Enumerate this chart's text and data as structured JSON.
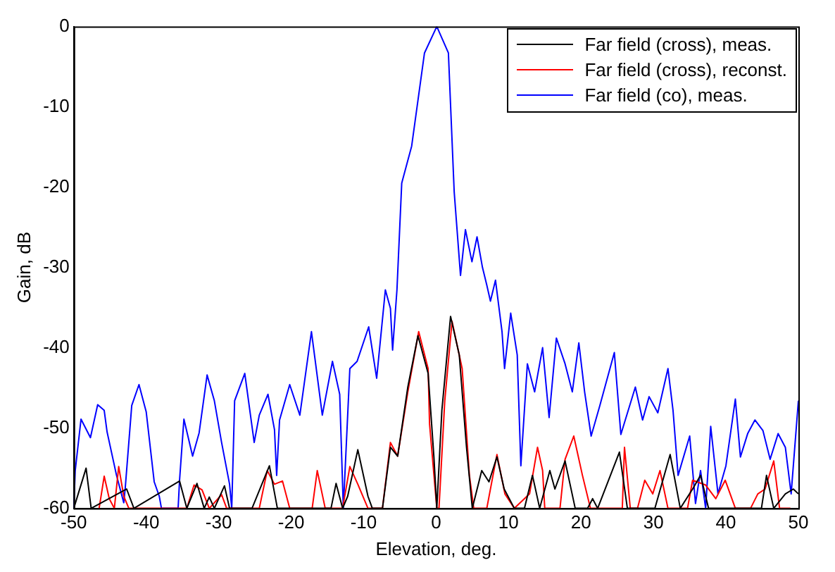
{
  "chart_data": {
    "type": "line",
    "xlabel": "Elevation, deg.",
    "ylabel": "Gain, dB",
    "xlim": [
      -50,
      50
    ],
    "ylim": [
      -60,
      0
    ],
    "xticks": [
      -50,
      -40,
      -30,
      -20,
      -10,
      0,
      10,
      20,
      30,
      40,
      50
    ],
    "yticks": [
      -60,
      -50,
      -40,
      -30,
      -20,
      -10,
      0
    ],
    "grid": false,
    "legend": "top right",
    "marker": "none",
    "line_style": "solid",
    "series": [
      {
        "name": "Far field (cross), meas.",
        "color": "#000000",
        "x": [
          -50,
          -48.3,
          -47.6,
          -42.7,
          -41.7,
          -35.4,
          -34.4,
          -33,
          -32,
          -31.3,
          -30.6,
          -29.2,
          -28.5,
          -25.4,
          -23,
          -21.9,
          -14.5,
          -13.8,
          -12.9,
          -12.2,
          -10.8,
          -9.4,
          -8.8,
          -7.4,
          -6.3,
          -5.3,
          -3.9,
          -2.5,
          -1.1,
          -0.3,
          0.1,
          0.8,
          2,
          3.2,
          4.2,
          5,
          6.3,
          7.3,
          8.4,
          9.4,
          10.8,
          12.2,
          13.3,
          14.3,
          15.7,
          16.4,
          17.8,
          19.2,
          20.9,
          21.6,
          22.3,
          25.3,
          26.4,
          30.2,
          32.3,
          33.7,
          35.4,
          36.5,
          37.6,
          44.9,
          45.6,
          46.6,
          48.2,
          49.3,
          50
        ],
        "values": [
          -60,
          -55,
          -60,
          -57.6,
          -60,
          -56.6,
          -60,
          -56.9,
          -60,
          -58.6,
          -60,
          -57.2,
          -60,
          -60,
          -54.7,
          -60,
          -60,
          -56.9,
          -60,
          -58.5,
          -52.7,
          -58.5,
          -60,
          -60,
          -52.4,
          -53.5,
          -44.9,
          -38.5,
          -43.2,
          -53.6,
          -60,
          -47.8,
          -36.1,
          -40.9,
          -52.4,
          -60,
          -55.3,
          -56.7,
          -53.6,
          -57.6,
          -60,
          -60,
          -55.9,
          -60,
          -55.3,
          -57.6,
          -54.1,
          -60,
          -60,
          -58.8,
          -60,
          -53,
          -60,
          -60,
          -53.3,
          -60,
          -57.6,
          -55.9,
          -60,
          -60,
          -55.9,
          -60,
          -58.2,
          -57.6,
          -58.2
        ]
      },
      {
        "name": "Far field (cross), reconst.",
        "color": "#ff0000",
        "x": [
          -46.5,
          -45.8,
          -45.1,
          -44.4,
          -43.8,
          -43.1,
          -42.4,
          -34.4,
          -33.4,
          -32.3,
          -31.3,
          -29.6,
          -28.9,
          -24.4,
          -23.3,
          -22.3,
          -21.2,
          -20.2,
          -17.1,
          -16.4,
          -15.3,
          -12.9,
          -11.9,
          -10.8,
          -9.4,
          -7.4,
          -6.3,
          -5.3,
          -3.9,
          -2.4,
          -1.1,
          -0.9,
          0.1,
          0.4,
          1.2,
          2.2,
          3.6,
          4.6,
          5.2,
          7,
          8.4,
          9.5,
          10.8,
          12.9,
          14,
          14.7,
          15,
          17.1,
          17.8,
          19,
          20.2,
          21.3,
          25.7,
          26,
          26.8,
          27.8,
          28.8,
          29.9,
          30.9,
          32,
          34.7,
          35.4,
          37.2,
          38.6,
          39.9,
          41.3,
          43.4,
          44.4,
          45.4,
          46.6,
          47.4,
          48.9
        ],
        "values": [
          -60,
          -56,
          -58.8,
          -60,
          -54.8,
          -58.5,
          -60,
          -60,
          -57.1,
          -57.7,
          -60,
          -58.3,
          -60,
          -60,
          -55.3,
          -57,
          -56.6,
          -60,
          -60,
          -55.3,
          -60,
          -60,
          -54.8,
          -57,
          -60,
          -60,
          -51.8,
          -53.5,
          -45.5,
          -38,
          -42.6,
          -49.5,
          -60,
          -60,
          -46.6,
          -36.7,
          -42.6,
          -55.9,
          -60,
          -60,
          -53.3,
          -58.2,
          -60,
          -58.2,
          -52.4,
          -55.3,
          -60,
          -60,
          -53.9,
          -51,
          -55.9,
          -60,
          -60,
          -52.4,
          -60,
          -60,
          -56.5,
          -58.2,
          -55.3,
          -60,
          -60,
          -56.5,
          -57.1,
          -58.8,
          -56.5,
          -60,
          -60,
          -58.2,
          -57.6,
          -54.1,
          -60,
          -60
        ]
      },
      {
        "name": "Far field (co), meas.",
        "color": "#0000ff",
        "x": [
          -50,
          -49.8,
          -49,
          -47.7,
          -46.7,
          -45.8,
          -45.4,
          -44.1,
          -43.1,
          -42.9,
          -42,
          -41,
          -40,
          -38.9,
          -38.2,
          -37.9,
          -35.6,
          -35.4,
          -34.8,
          -33.6,
          -32.7,
          -31.6,
          -30.6,
          -29.6,
          -28.5,
          -28.2,
          -27.8,
          -26.4,
          -25.1,
          -24.4,
          -23.2,
          -22.3,
          -22,
          -21.6,
          -20.2,
          -18.8,
          -17.2,
          -15.7,
          -14.3,
          -13.3,
          -12.8,
          -11.9,
          -10.9,
          -9.3,
          -8.2,
          -7,
          -6.3,
          -6,
          -5.4,
          -4.74,
          -3.37,
          -1.6,
          0.1,
          1.7,
          2.5,
          3.37,
          4.05,
          4.95,
          5.65,
          6.4,
          7,
          7.5,
          8.2,
          9.1,
          9.45,
          10.3,
          11.2,
          11.7,
          12.6,
          13.6,
          14.7,
          15.6,
          16.6,
          17.8,
          18.8,
          19.7,
          20.5,
          21.4,
          22.6,
          24.6,
          25.5,
          27.5,
          28.5,
          29.4,
          30.6,
          32,
          32.7,
          33.4,
          35,
          35.8,
          36.5,
          37.2,
          37.9,
          38.9,
          40,
          41.3,
          42,
          43,
          44,
          45.1,
          46.1,
          47.2,
          48.2,
          49,
          50
        ],
        "values": [
          -60,
          -55.3,
          -48.9,
          -51.2,
          -47.1,
          -47.8,
          -50.5,
          -55.9,
          -59.3,
          -57.5,
          -47.2,
          -44.6,
          -48,
          -56.7,
          -58.5,
          -60,
          -60,
          -56.5,
          -48.9,
          -53.5,
          -50.6,
          -43.4,
          -46.6,
          -51.8,
          -57,
          -60,
          -46.6,
          -43.2,
          -51.8,
          -48.4,
          -45.8,
          -50.2,
          -55.9,
          -49,
          -44.6,
          -48.4,
          -38,
          -48.4,
          -41.7,
          -45.8,
          -60,
          -42.6,
          -41.7,
          -37.4,
          -43.8,
          -32.8,
          -35.1,
          -40.3,
          -32.8,
          -19.5,
          -14.9,
          -3.3,
          0,
          -3.3,
          -20.6,
          -31,
          -25.3,
          -29.3,
          -26.2,
          -30,
          -32.2,
          -34.2,
          -31.6,
          -38,
          -42.6,
          -35.7,
          -40.9,
          -54.7,
          -42,
          -45.5,
          -40,
          -48.7,
          -38.8,
          -42,
          -45.5,
          -39.4,
          -45.5,
          -51,
          -47.2,
          -40.6,
          -50.8,
          -44.9,
          -49,
          -46.1,
          -48.1,
          -42.6,
          -47.8,
          -55.9,
          -51,
          -59.4,
          -55.3,
          -60,
          -49.8,
          -58.2,
          -54.7,
          -46.4,
          -53.6,
          -50.7,
          -49,
          -50.3,
          -53.9,
          -50.7,
          -52.4,
          -58.2,
          -46.6
        ]
      }
    ]
  }
}
